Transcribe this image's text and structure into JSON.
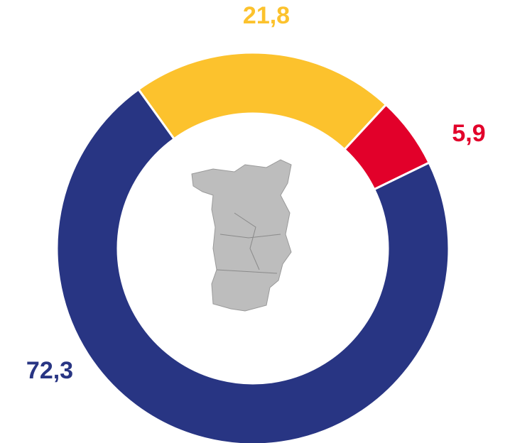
{
  "chart_data": {
    "type": "donut",
    "values": [
      21.8,
      5.9,
      72.3
    ],
    "value_labels": [
      "21,8",
      "5,9",
      "72,3"
    ],
    "colors": [
      "#fcc22d",
      "#e2002a",
      "#283583"
    ]
  }
}
